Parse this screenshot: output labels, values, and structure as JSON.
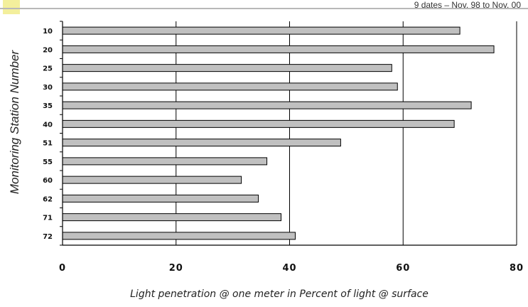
{
  "chart_data": {
    "type": "bar",
    "orientation": "horizontal",
    "subtitle": "9 dates – Nov. 98 to Nov. 00",
    "ylabel": "Monitoring Station Number",
    "xlabel": "Light penetration @ one meter in Percent of light @ surface",
    "categories": [
      "10",
      "20",
      "25",
      "30",
      "35",
      "40",
      "51",
      "55",
      "60",
      "62",
      "71",
      "72"
    ],
    "values": [
      70,
      76,
      58,
      59,
      72,
      69,
      49,
      36,
      31.5,
      34.5,
      38.5,
      41
    ],
    "xlim": [
      0,
      80
    ],
    "xticks": [
      "0",
      "20",
      "40",
      "60",
      "80"
    ],
    "grid": "vertical",
    "colors": {
      "bar_fill": "#c0c0c0",
      "bar_stroke": "#000000"
    }
  },
  "decoration": {
    "accent": "#f3ef9c",
    "line": "#b8b8b8"
  }
}
